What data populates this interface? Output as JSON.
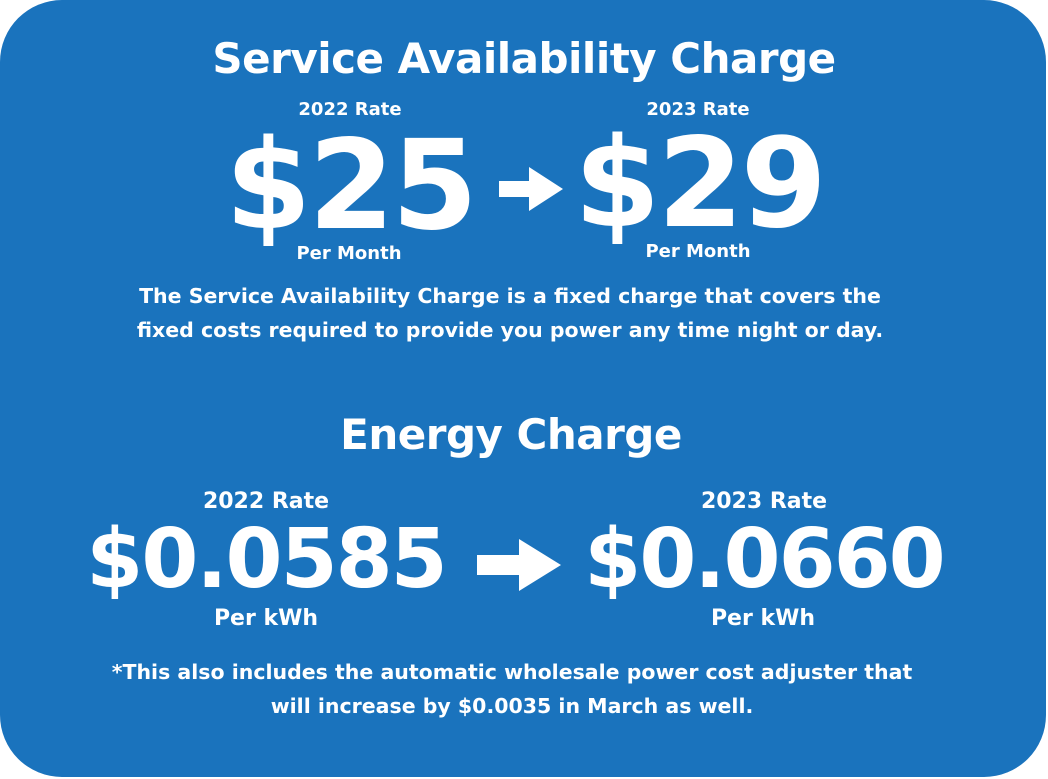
{
  "service": {
    "title": "Service Availability Charge",
    "old_rate_label": "2022 Rate",
    "new_rate_label": "2023 Rate",
    "old_value": "$25",
    "new_value": "$29",
    "old_unit": "Per Month",
    "new_unit": "Per Month",
    "description_line1": "The Service Availability Charge is a fixed charge that covers the",
    "description_line2": "fixed costs required to provide you power any time night or day."
  },
  "energy": {
    "title": "Energy Charge",
    "old_rate_label": "2022 Rate",
    "new_rate_label": "2023 Rate",
    "old_value": "$0.0585",
    "new_value": "$0.0660",
    "old_unit": "Per kWh",
    "new_unit": "Per kWh",
    "note_line1": "*This also includes the automatic wholesale power cost adjuster that",
    "note_line2": "will increase by $0.0035 in March as well."
  },
  "colors": {
    "background": "#1a73bd",
    "text": "#ffffff"
  },
  "icons": [
    "arrow-right-icon",
    "arrow-right-icon"
  ]
}
